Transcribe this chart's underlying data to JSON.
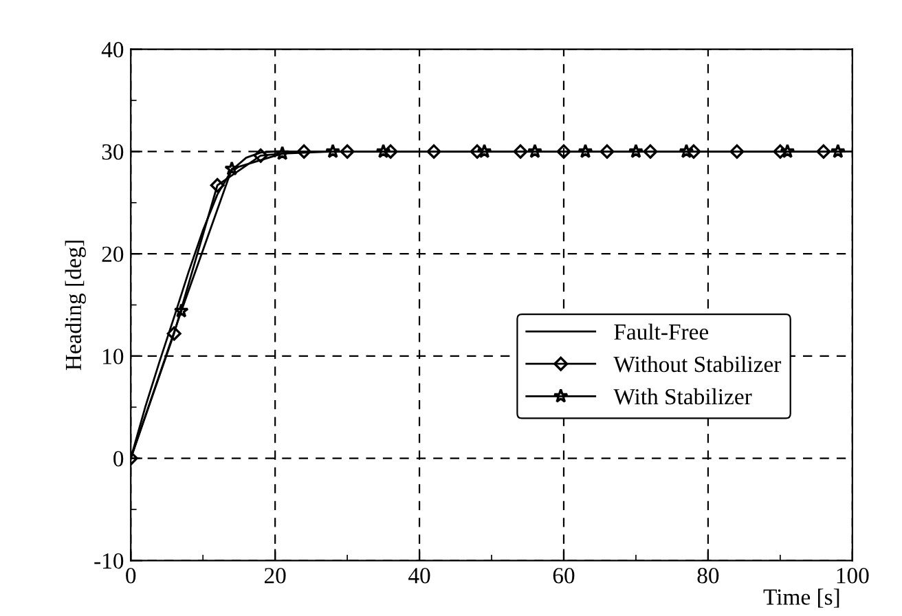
{
  "chart_data": {
    "type": "line",
    "xlabel": "Time [s]",
    "ylabel": "Heading [deg]",
    "xlim": [
      0,
      100
    ],
    "ylim": [
      -10,
      40
    ],
    "xticks": [
      0,
      20,
      40,
      60,
      80,
      100
    ],
    "yticks": [
      -10,
      0,
      10,
      20,
      30,
      40
    ],
    "grid": true,
    "legend": "right",
    "series": [
      {
        "name": "Fault-Free",
        "color": "#000000",
        "marker": "none",
        "x": [
          0,
          1,
          2,
          4,
          6,
          8,
          10,
          12,
          14,
          16,
          18,
          20,
          22,
          30,
          40,
          50,
          60,
          70,
          80,
          90,
          100
        ],
        "values": [
          0,
          2.5,
          5,
          9.5,
          13.8,
          18.2,
          22.3,
          25.8,
          28.2,
          29.4,
          29.9,
          30,
          30,
          30,
          30,
          30,
          30,
          30,
          30,
          30,
          30
        ]
      },
      {
        "name": "Without Stabilizer",
        "color": "#000000",
        "marker": "diamond",
        "x": [
          0,
          6,
          12,
          18,
          24,
          30,
          36,
          42,
          48,
          54,
          60,
          66,
          72,
          78,
          84,
          90,
          96
        ],
        "values": [
          0,
          12.2,
          26.7,
          29.6,
          30,
          30,
          30,
          30,
          30,
          30,
          30,
          30,
          30,
          30,
          30,
          30,
          30
        ]
      },
      {
        "name": "With Stabilizer",
        "color": "#000000",
        "marker": "star",
        "x": [
          0,
          7,
          14,
          21,
          28,
          35,
          42,
          49,
          56,
          63,
          70,
          77,
          84,
          91,
          98
        ],
        "values": [
          0,
          14.4,
          28.3,
          29.8,
          30,
          30,
          30,
          30,
          30,
          30,
          30,
          30,
          30,
          30,
          30
        ]
      }
    ]
  }
}
